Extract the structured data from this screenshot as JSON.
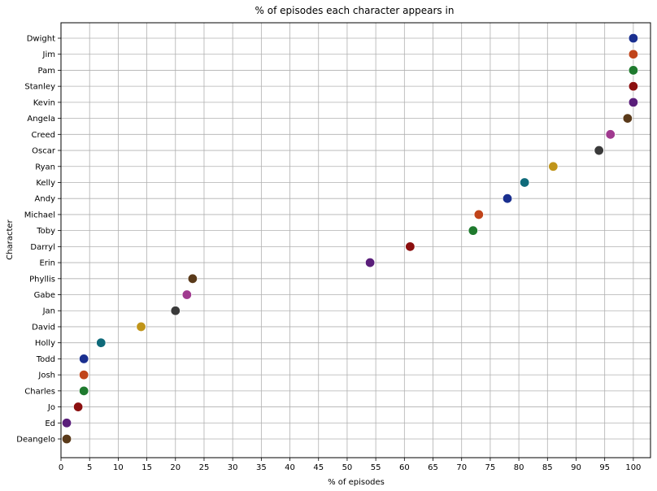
{
  "chart_data": {
    "type": "scatter",
    "title": "% of episodes each character appears in",
    "xlabel": "% of episodes",
    "ylabel": "Character",
    "xlim": [
      0,
      103
    ],
    "xticks": [
      0,
      5,
      10,
      15,
      20,
      25,
      30,
      35,
      40,
      45,
      50,
      55,
      60,
      65,
      70,
      75,
      80,
      85,
      90,
      95,
      100
    ],
    "grid": true,
    "points": [
      {
        "name": "Dwight",
        "value": 100,
        "color": "#1a2f8f"
      },
      {
        "name": "Jim",
        "value": 100,
        "color": "#c0441a"
      },
      {
        "name": "Pam",
        "value": 100,
        "color": "#1f7a2e"
      },
      {
        "name": "Stanley",
        "value": 100,
        "color": "#8b0f0f"
      },
      {
        "name": "Kevin",
        "value": 100,
        "color": "#5a1e7a"
      },
      {
        "name": "Angela",
        "value": 99,
        "color": "#5a3a1a"
      },
      {
        "name": "Creed",
        "value": 96,
        "color": "#a03a8f"
      },
      {
        "name": "Oscar",
        "value": 94,
        "color": "#3a3a3a"
      },
      {
        "name": "Ryan",
        "value": 86,
        "color": "#c0951a"
      },
      {
        "name": "Kelly",
        "value": 81,
        "color": "#0f6a7a"
      },
      {
        "name": "Andy",
        "value": 78,
        "color": "#1a2f8f"
      },
      {
        "name": "Michael",
        "value": 73,
        "color": "#c0441a"
      },
      {
        "name": "Toby",
        "value": 72,
        "color": "#1f7a2e"
      },
      {
        "name": "Darryl",
        "value": 61,
        "color": "#8b0f0f"
      },
      {
        "name": "Erin",
        "value": 54,
        "color": "#5a1e7a"
      },
      {
        "name": "Phyllis",
        "value": 23,
        "color": "#5a3a1a"
      },
      {
        "name": "Gabe",
        "value": 22,
        "color": "#a03a8f"
      },
      {
        "name": "Jan",
        "value": 20,
        "color": "#3a3a3a"
      },
      {
        "name": "David",
        "value": 14,
        "color": "#c0951a"
      },
      {
        "name": "Holly",
        "value": 7,
        "color": "#0f6a7a"
      },
      {
        "name": "Todd",
        "value": 4,
        "color": "#1a2f8f"
      },
      {
        "name": "Josh",
        "value": 4,
        "color": "#c0441a"
      },
      {
        "name": "Charles",
        "value": 4,
        "color": "#1f7a2e"
      },
      {
        "name": "Jo",
        "value": 3,
        "color": "#8b0f0f"
      },
      {
        "name": "Ed",
        "value": 1,
        "color": "#5a1e7a"
      },
      {
        "name": "Deangelo",
        "value": 1,
        "color": "#5a3a1a"
      }
    ]
  }
}
